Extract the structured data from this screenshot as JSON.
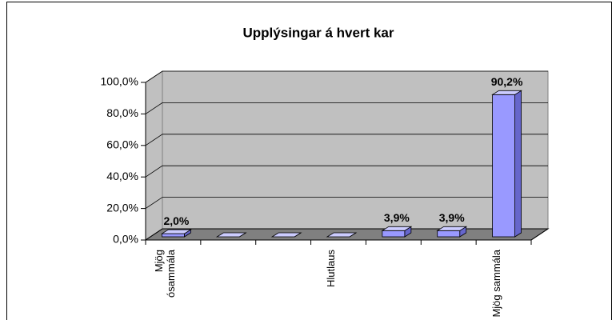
{
  "chart_data": {
    "type": "bar3d",
    "title": "Upplýsingar á hvert kar",
    "categories": [
      "Mjög ósammála",
      null,
      null,
      "Hlutlaus",
      null,
      null,
      "Mjög sammála"
    ],
    "values": [
      2.0,
      0,
      0,
      0,
      3.9,
      3.9,
      90.2
    ],
    "value_labels": [
      "2,0%",
      null,
      null,
      null,
      "3,9%",
      "3,9%",
      "90,2%"
    ],
    "color": "#9999ff",
    "ylim": [
      0,
      100
    ],
    "yticks": [
      {
        "value": 0,
        "label": "0,0%"
      },
      {
        "value": 20,
        "label": "20,0%"
      },
      {
        "value": 40,
        "label": "40,0%"
      },
      {
        "value": 60,
        "label": "60,0%"
      },
      {
        "value": 80,
        "label": "80,0%"
      },
      {
        "value": 100,
        "label": "100,0%"
      }
    ],
    "grid": true
  }
}
